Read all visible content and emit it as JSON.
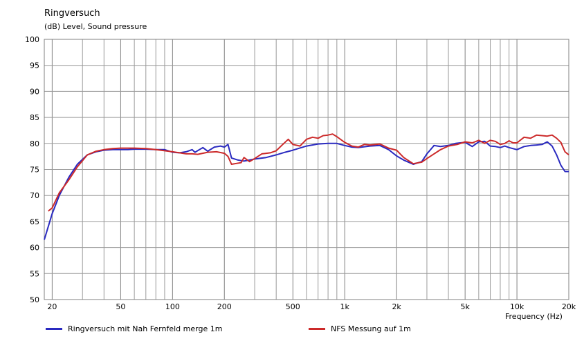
{
  "chart_data": {
    "type": "line",
    "title": "Ringversuch",
    "ylabel": "(dB)  Level, Sound pressure",
    "xlabel": "Frequency  (Hz)",
    "x_scale": "log",
    "xlim": [
      18,
      20000
    ],
    "ylim": [
      50,
      100
    ],
    "y_ticks": [
      50,
      55,
      60,
      65,
      70,
      75,
      80,
      85,
      90,
      95,
      100
    ],
    "x_tick_values": [
      20,
      50,
      100,
      200,
      500,
      1000,
      2000,
      5000,
      10000,
      20000
    ],
    "x_tick_labels": [
      "20",
      "50",
      "100",
      "200",
      "500",
      "1k",
      "2k",
      "5k",
      "10k",
      "20k"
    ],
    "grid": true,
    "legend_position": "bottom",
    "series": [
      {
        "name": "Ringversuch mit Nah Fernfeld merge 1m",
        "color": "#2a2ac0",
        "points": [
          [
            18,
            61.5
          ],
          [
            20,
            66.5
          ],
          [
            22,
            70
          ],
          [
            25,
            73.5
          ],
          [
            28,
            76
          ],
          [
            32,
            77.8
          ],
          [
            36,
            78.4
          ],
          [
            40,
            78.7
          ],
          [
            45,
            78.8
          ],
          [
            50,
            78.8
          ],
          [
            55,
            78.8
          ],
          [
            60,
            78.9
          ],
          [
            70,
            78.9
          ],
          [
            80,
            78.8
          ],
          [
            90,
            78.8
          ],
          [
            100,
            78.3
          ],
          [
            110,
            78.2
          ],
          [
            120,
            78.4
          ],
          [
            130,
            78.8
          ],
          [
            135,
            78.3
          ],
          [
            150,
            79.2
          ],
          [
            160,
            78.5
          ],
          [
            175,
            79.3
          ],
          [
            190,
            79.5
          ],
          [
            200,
            79.3
          ],
          [
            210,
            79.8
          ],
          [
            220,
            77.2
          ],
          [
            240,
            76.8
          ],
          [
            260,
            76.6
          ],
          [
            280,
            76.8
          ],
          [
            300,
            77
          ],
          [
            350,
            77.3
          ],
          [
            400,
            77.8
          ],
          [
            450,
            78.3
          ],
          [
            500,
            78.7
          ],
          [
            600,
            79.5
          ],
          [
            700,
            79.9
          ],
          [
            800,
            80.0
          ],
          [
            900,
            80.0
          ],
          [
            1000,
            79.6
          ],
          [
            1100,
            79.3
          ],
          [
            1200,
            79.2
          ],
          [
            1400,
            79.5
          ],
          [
            1600,
            79.6
          ],
          [
            1800,
            78.8
          ],
          [
            2000,
            77.6
          ],
          [
            2200,
            76.8
          ],
          [
            2500,
            76
          ],
          [
            2800,
            76.5
          ],
          [
            3000,
            78
          ],
          [
            3300,
            79.6
          ],
          [
            3600,
            79.4
          ],
          [
            4000,
            79.6
          ],
          [
            4400,
            80.0
          ],
          [
            5000,
            80.2
          ],
          [
            5500,
            79.4
          ],
          [
            6000,
            80.3
          ],
          [
            6500,
            80.4
          ],
          [
            7000,
            79.5
          ],
          [
            7500,
            79.4
          ],
          [
            8000,
            79.2
          ],
          [
            8500,
            79.5
          ],
          [
            9000,
            79.2
          ],
          [
            10000,
            78.8
          ],
          [
            11000,
            79.4
          ],
          [
            12000,
            79.6
          ],
          [
            13000,
            79.7
          ],
          [
            14000,
            79.8
          ],
          [
            15000,
            80.3
          ],
          [
            16000,
            79.5
          ],
          [
            17000,
            77.8
          ],
          [
            18000,
            75.8
          ],
          [
            19000,
            74.6
          ],
          [
            20000,
            74.6
          ]
        ]
      },
      {
        "name": "NFS Messung auf 1m",
        "color": "#cc2a2a",
        "points": [
          [
            19,
            67
          ],
          [
            20,
            67.6
          ],
          [
            22,
            70.5
          ],
          [
            25,
            73
          ],
          [
            28,
            75.5
          ],
          [
            32,
            77.8
          ],
          [
            36,
            78.5
          ],
          [
            40,
            78.8
          ],
          [
            45,
            79
          ],
          [
            50,
            79.1
          ],
          [
            55,
            79.1
          ],
          [
            60,
            79.1
          ],
          [
            70,
            79
          ],
          [
            80,
            78.8
          ],
          [
            90,
            78.6
          ],
          [
            100,
            78.4
          ],
          [
            110,
            78.2
          ],
          [
            120,
            78
          ],
          [
            130,
            78
          ],
          [
            140,
            77.9
          ],
          [
            160,
            78.3
          ],
          [
            180,
            78.4
          ],
          [
            200,
            78.1
          ],
          [
            210,
            77.5
          ],
          [
            220,
            76
          ],
          [
            250,
            76.3
          ],
          [
            260,
            77.3
          ],
          [
            280,
            76.5
          ],
          [
            300,
            77.1
          ],
          [
            330,
            78
          ],
          [
            370,
            78.2
          ],
          [
            400,
            78.6
          ],
          [
            430,
            79.6
          ],
          [
            470,
            80.8
          ],
          [
            500,
            79.8
          ],
          [
            550,
            79.5
          ],
          [
            600,
            80.8
          ],
          [
            650,
            81.2
          ],
          [
            700,
            81.0
          ],
          [
            750,
            81.5
          ],
          [
            800,
            81.6
          ],
          [
            850,
            81.8
          ],
          [
            900,
            81.3
          ],
          [
            1000,
            80.2
          ],
          [
            1100,
            79.5
          ],
          [
            1200,
            79.3
          ],
          [
            1300,
            79.8
          ],
          [
            1400,
            79.7
          ],
          [
            1600,
            79.9
          ],
          [
            1800,
            79.1
          ],
          [
            2000,
            78.7
          ],
          [
            2200,
            77.3
          ],
          [
            2500,
            76.1
          ],
          [
            2800,
            76.4
          ],
          [
            3000,
            77.1
          ],
          [
            3300,
            78
          ],
          [
            3600,
            78.8
          ],
          [
            4000,
            79.5
          ],
          [
            4500,
            79.8
          ],
          [
            5000,
            80.3
          ],
          [
            5500,
            80.1
          ],
          [
            6000,
            80.6
          ],
          [
            6500,
            80.0
          ],
          [
            7000,
            80.6
          ],
          [
            7500,
            80.4
          ],
          [
            8000,
            79.8
          ],
          [
            8500,
            80.0
          ],
          [
            9000,
            80.5
          ],
          [
            9500,
            80.1
          ],
          [
            10000,
            80.1
          ],
          [
            11000,
            81.2
          ],
          [
            12000,
            81.0
          ],
          [
            13000,
            81.6
          ],
          [
            14000,
            81.5
          ],
          [
            15000,
            81.4
          ],
          [
            16000,
            81.6
          ],
          [
            17000,
            81.0
          ],
          [
            18000,
            80.2
          ],
          [
            19000,
            78.4
          ],
          [
            20000,
            77.8
          ]
        ]
      }
    ]
  }
}
